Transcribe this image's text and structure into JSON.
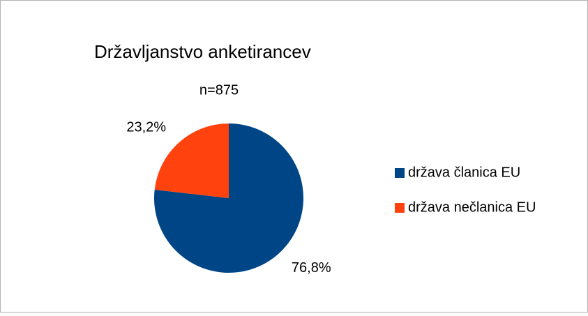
{
  "chart_data": {
    "type": "pie",
    "title": "Državljanstvo anketirancev",
    "subtitle": "n=875",
    "categories": [
      "država članica EU",
      "država nečlanica EU"
    ],
    "values": [
      76.8,
      23.2
    ],
    "value_labels": [
      "76,8%",
      "23,2%"
    ],
    "colors": [
      "#004586",
      "#ff420e"
    ],
    "legend": "right"
  }
}
